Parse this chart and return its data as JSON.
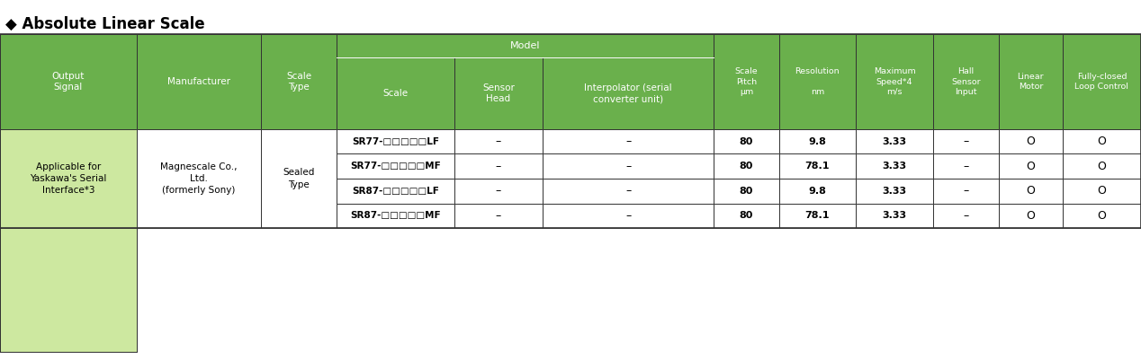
{
  "title": "◆ Absolute Linear Scale",
  "title_fontsize": 12,
  "header_bg": "#6ab04c",
  "header_text_color": "#ffffff",
  "data_bg": "#ffffff",
  "light_green_bg": "#cde8a0",
  "border_color": "#333333",
  "output_signal": "Applicable for\nYaskawa's Serial\nInterface*3",
  "manufacturer": "Magnescale Co.,\nLtd.\n(formerly Sony)",
  "scale_type": "Sealed\nType",
  "rows": [
    {
      "scale": "SR77-□□□□□LF",
      "sensor_head": "–",
      "interpolator": "–",
      "pitch": "80",
      "resolution": "9.8",
      "max_speed": "3.33",
      "hall": "–",
      "linear": "O",
      "fully_closed": "O"
    },
    {
      "scale": "SR77-□□□□□MF",
      "sensor_head": "–",
      "interpolator": "–",
      "pitch": "80",
      "resolution": "78.1",
      "max_speed": "3.33",
      "hall": "–",
      "linear": "O",
      "fully_closed": "O"
    },
    {
      "scale": "SR87-□□□□□LF",
      "sensor_head": "–",
      "interpolator": "–",
      "pitch": "80",
      "resolution": "9.8",
      "max_speed": "3.33",
      "hall": "–",
      "linear": "O",
      "fully_closed": "O"
    },
    {
      "scale": "SR87-□□□□□MF",
      "sensor_head": "–",
      "interpolator": "–",
      "pitch": "80",
      "resolution": "78.1",
      "max_speed": "3.33",
      "hall": "–",
      "linear": "O",
      "fully_closed": "O"
    }
  ],
  "header_labels": {
    "0": "Output\nSignal",
    "1": "Manufacturer",
    "2": "Scale\nType",
    "3": "Scale",
    "4": "Sensor\nHead",
    "5": "Interpolator (serial\nconverter unit)",
    "6": "Scale\nPitch\nμm",
    "7": "Resolution\n\nnm",
    "8": "Maximum\nSpeed*4\nm/s",
    "9": "Hall\nSensor\nInput",
    "10": "Linear\nMotor",
    "11": "Fully-closed\nLoop Control"
  },
  "fig_width": 12.68,
  "fig_height": 4.0,
  "dpi": 100
}
